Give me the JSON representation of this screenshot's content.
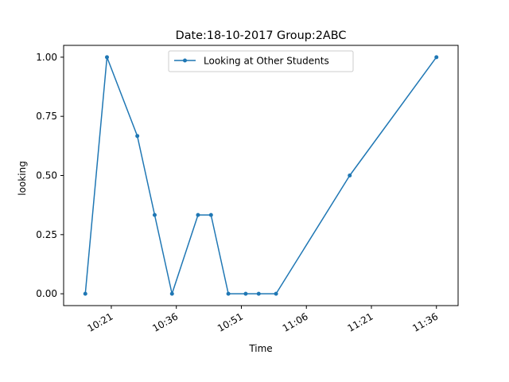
{
  "chart_data": {
    "type": "line",
    "title": "Date:18-10-2017  Group:2ABC",
    "xlabel": "Time",
    "ylabel": "looking",
    "x_tick_labels": [
      "10:21",
      "10:36",
      "10:51",
      "11:06",
      "11:21",
      "11:36"
    ],
    "y_tick_labels": [
      "0.00",
      "0.25",
      "0.50",
      "0.75",
      "1.00"
    ],
    "y_ticks": [
      0,
      0.25,
      0.5,
      0.75,
      1.0
    ],
    "x_ticks": [
      "10:21",
      "10:36",
      "10:51",
      "11:06",
      "11:21",
      "11:36"
    ],
    "xlim": [
      "10:10",
      "11:41"
    ],
    "ylim": [
      -0.05,
      1.05
    ],
    "grid": false,
    "legend_position": "top-center",
    "series": [
      {
        "name": "Looking at Other Students",
        "color": "#1f77b4",
        "marker": "dot",
        "x": [
          "10:15",
          "10:20",
          "10:27",
          "10:31",
          "10:35",
          "10:41",
          "10:44",
          "10:48",
          "10:52",
          "10:55",
          "10:59",
          "11:16",
          "11:36"
        ],
        "y": [
          0.0,
          1.0,
          0.667,
          0.333,
          0.0,
          0.333,
          0.333,
          0.0,
          0.0,
          0.0,
          0.0,
          0.5,
          1.0
        ]
      }
    ]
  }
}
